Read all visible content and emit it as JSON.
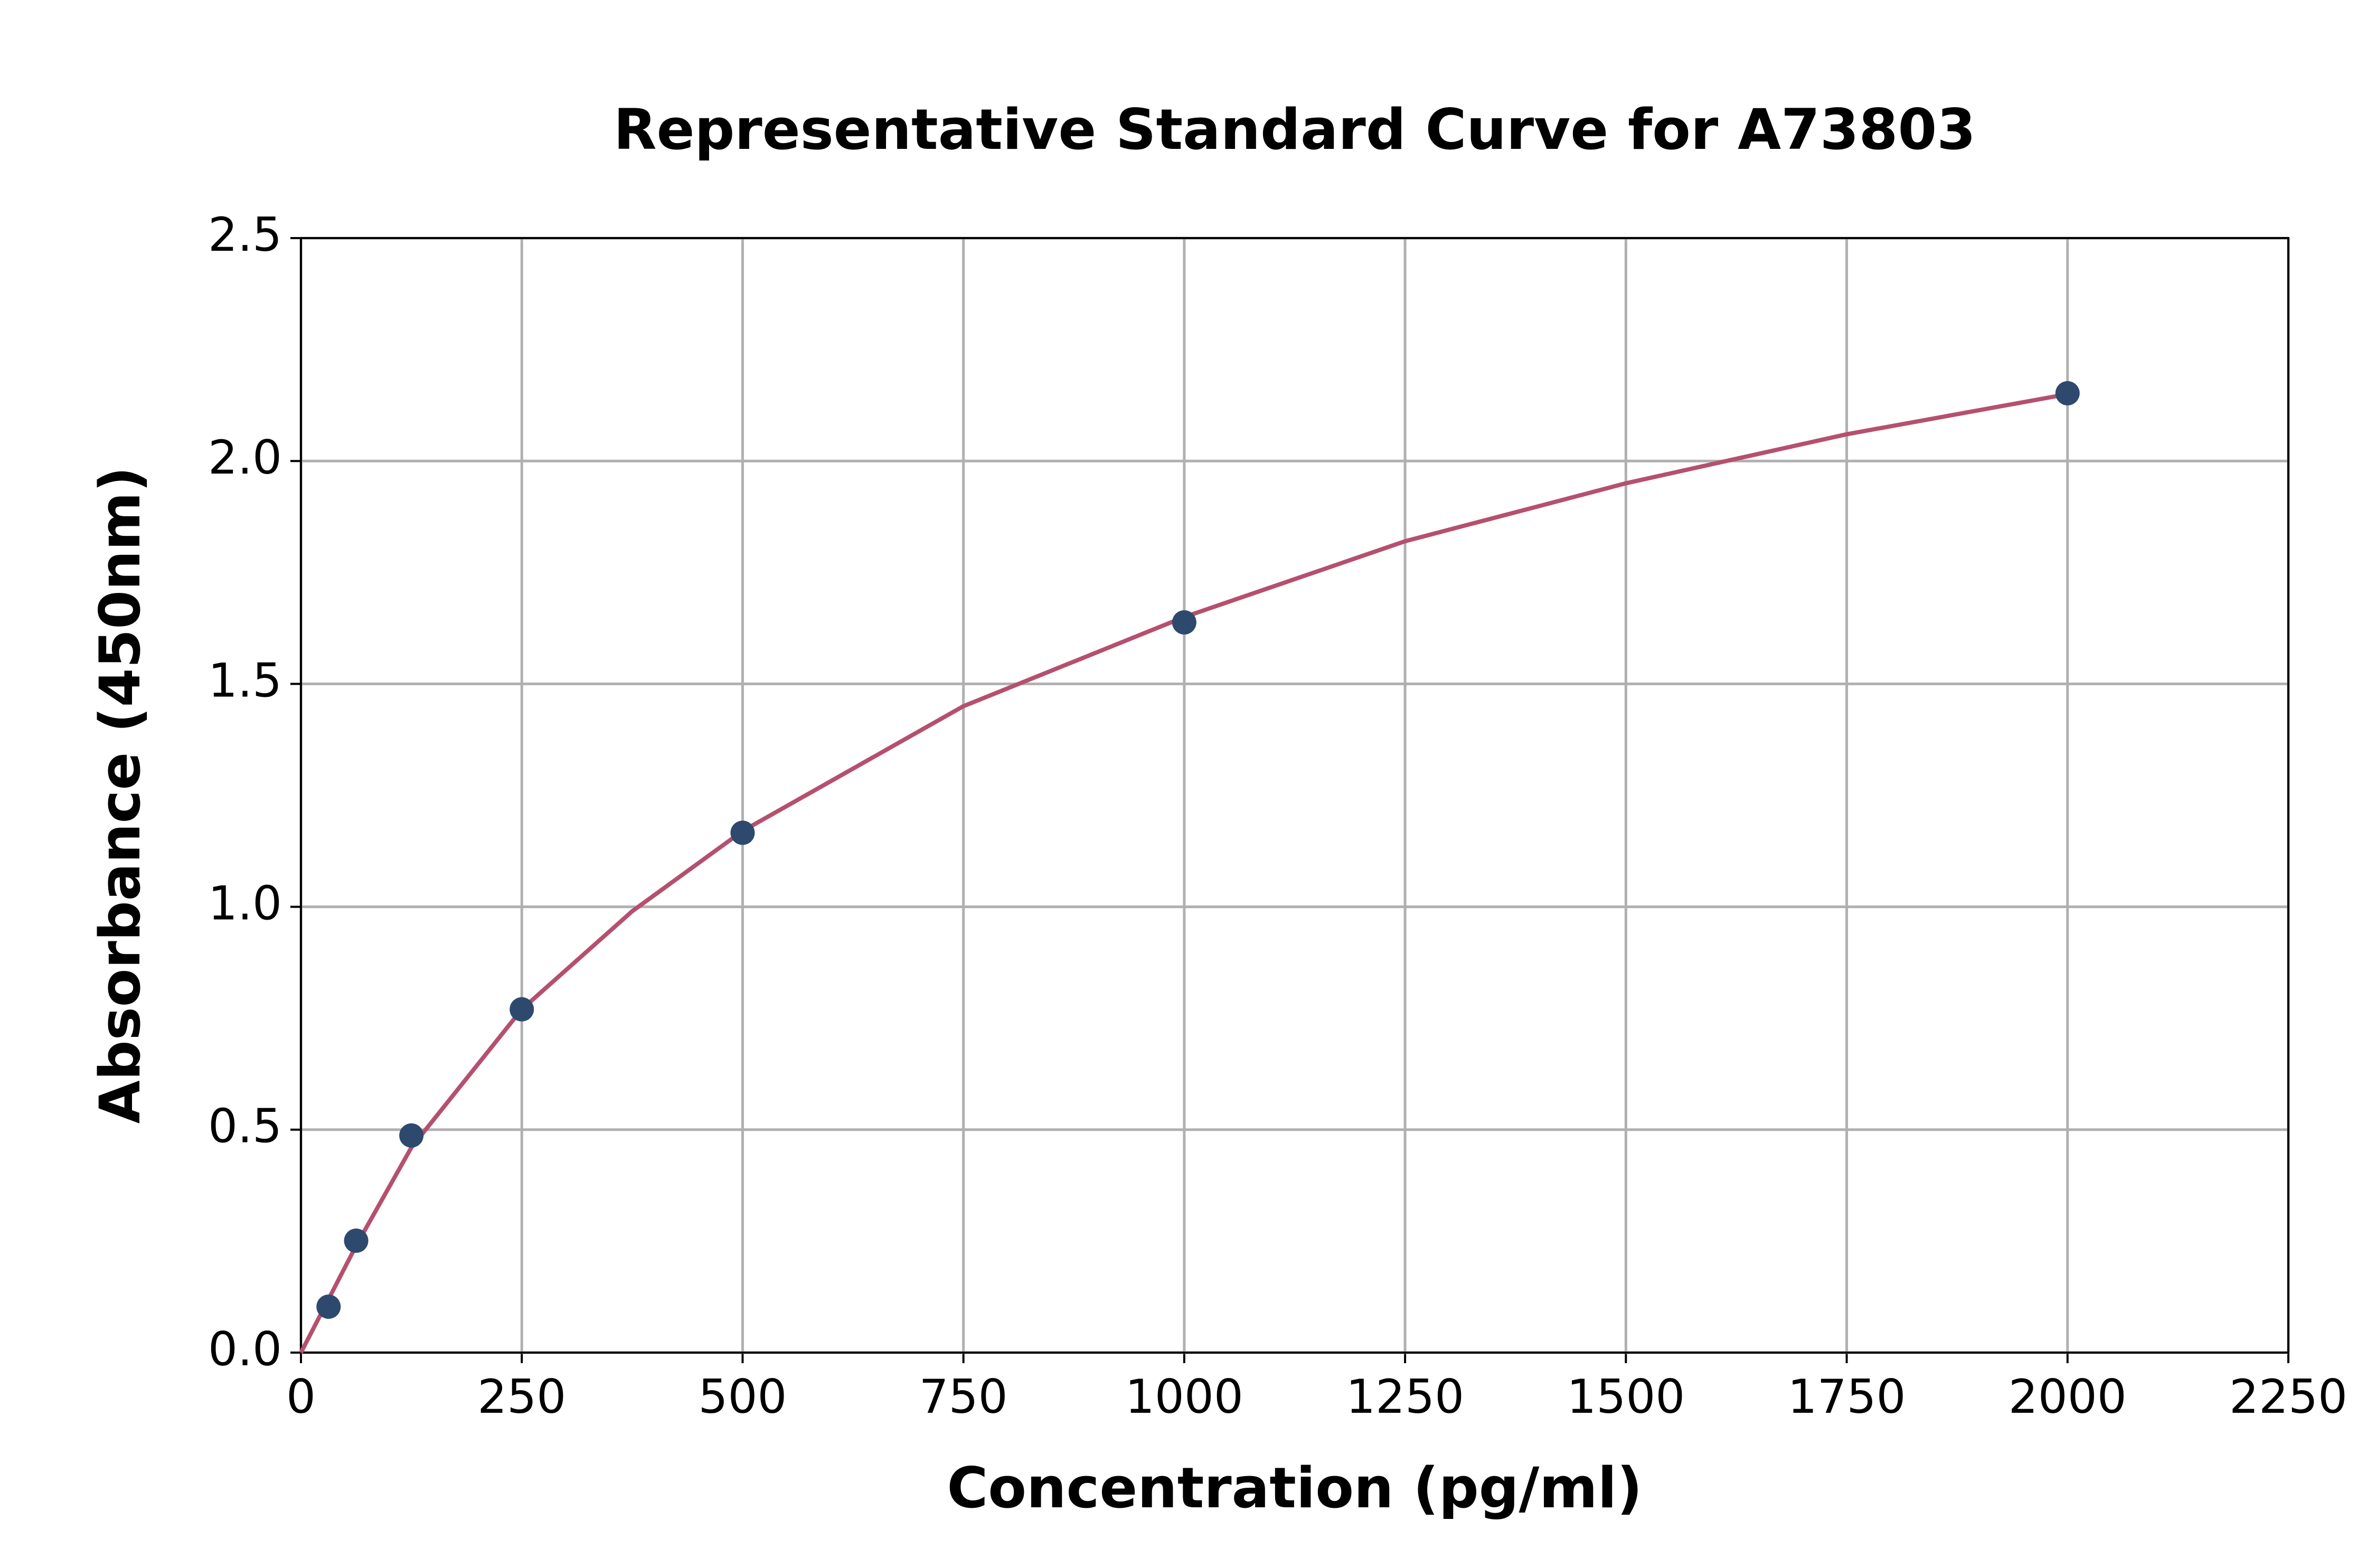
{
  "chart_data": {
    "type": "scatter",
    "title": "Representative Standard Curve for A73803",
    "x_label": "Concentration (pg/ml)",
    "y_label": "Absorbance (450nm)",
    "points": {
      "color": "#2d4a6e",
      "x": [
        31.25,
        62.5,
        125,
        250,
        500,
        1000,
        2000
      ],
      "y": [
        0.103,
        0.251,
        0.487,
        0.77,
        1.166,
        1.638,
        2.152
      ]
    },
    "curve": {
      "color": "#b5506f",
      "x": [
        0,
        31.25,
        62.5,
        125,
        250,
        375,
        500,
        750,
        1000,
        1250,
        1500,
        1750,
        2000
      ],
      "y": [
        0.0,
        0.12,
        0.24,
        0.46,
        0.77,
        0.99,
        1.17,
        1.45,
        1.65,
        1.82,
        1.95,
        2.06,
        2.15
      ]
    },
    "xlim": [
      0,
      2250
    ],
    "ylim": [
      0,
      2.5
    ],
    "xticks": [
      0,
      250,
      500,
      750,
      1000,
      1250,
      1500,
      1750,
      2000,
      2250
    ],
    "yticks": [
      {
        "value": 0,
        "label": "0.0"
      },
      0.5,
      {
        "value": 1,
        "label": "1.0"
      },
      1.5,
      {
        "value": 2,
        "label": "2.0"
      },
      2.5
    ],
    "grid": true
  }
}
